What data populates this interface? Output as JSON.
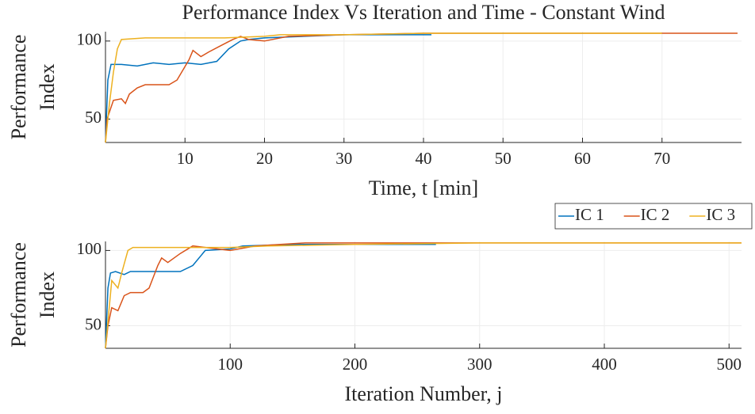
{
  "chart_data": [
    {
      "type": "line",
      "title": "Performance Index Vs Iteration and Time - Constant Wind",
      "xlabel": "Time, t [min]",
      "ylabel": [
        "Performance",
        "Index"
      ],
      "xlim": [
        0,
        80
      ],
      "ylim": [
        35,
        106
      ],
      "xticks": [
        10,
        20,
        30,
        40,
        50,
        60,
        70
      ],
      "yticks": [
        50,
        100
      ],
      "grid": true,
      "series": [
        {
          "color": "#0072bd",
          "x": [
            0,
            0.3,
            0.7,
            2,
            4,
            6,
            8,
            10,
            12,
            14,
            15.5,
            17,
            18,
            20,
            25,
            30,
            35,
            41
          ],
          "values": [
            35,
            75,
            85,
            85,
            84,
            86,
            85,
            86,
            85,
            87,
            95,
            100,
            101,
            102,
            103,
            104,
            104,
            104
          ]
        },
        {
          "color": "#d95319",
          "x": [
            0,
            0.2,
            1,
            2,
            2.5,
            3,
            4,
            5,
            8,
            9,
            10.5,
            11,
            12,
            13,
            14.5,
            16,
            17,
            18,
            20,
            23,
            30,
            40,
            79.5
          ],
          "values": [
            35,
            50,
            62,
            63,
            60,
            66,
            70,
            72,
            72,
            75,
            88,
            94,
            90,
            93,
            97,
            101,
            103,
            101,
            100,
            103,
            104,
            105,
            105
          ]
        },
        {
          "color": "#edb120",
          "x": [
            0,
            0.5,
            1,
            1.5,
            2,
            5,
            15,
            20,
            22,
            30,
            40,
            70
          ],
          "values": [
            35,
            60,
            80,
            95,
            101,
            102,
            102,
            103,
            104,
            104,
            105,
            105
          ]
        }
      ]
    },
    {
      "type": "line",
      "xlabel": "Iteration Number, j",
      "ylabel": [
        "Performance",
        "Index"
      ],
      "xlim": [
        0,
        510
      ],
      "ylim": [
        35,
        106
      ],
      "xticks": [
        100,
        200,
        300,
        400,
        500
      ],
      "yticks": [
        50,
        100
      ],
      "grid": true,
      "legend": "northeastoutside",
      "series": [
        {
          "name": "IC 1",
          "color": "#0072bd",
          "x": [
            0,
            2,
            4,
            8,
            15,
            20,
            30,
            60,
            70,
            80,
            100,
            110,
            150,
            200,
            265
          ],
          "values": [
            35,
            75,
            85,
            86,
            84,
            86,
            86,
            86,
            90,
            100,
            101,
            103,
            104,
            104,
            104
          ]
        },
        {
          "name": "IC 2",
          "color": "#d95319",
          "x": [
            0,
            2,
            5,
            10,
            15,
            20,
            30,
            35,
            42,
            45,
            50,
            60,
            70,
            90,
            100,
            120,
            160,
            250,
            510
          ],
          "values": [
            35,
            50,
            62,
            60,
            70,
            72,
            72,
            75,
            90,
            95,
            92,
            98,
            103,
            101,
            100,
            103,
            105,
            105,
            105
          ]
        },
        {
          "name": "IC 3",
          "color": "#edb120",
          "x": [
            0,
            5,
            10,
            13,
            18,
            22,
            60,
            100,
            130,
            200,
            300,
            510
          ],
          "values": [
            35,
            80,
            75,
            85,
            100,
            102,
            102,
            102,
            103,
            104,
            105,
            105
          ]
        }
      ]
    }
  ]
}
